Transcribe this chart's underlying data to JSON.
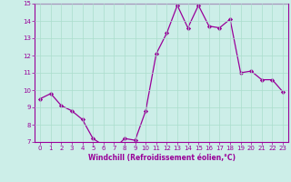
{
  "x": [
    0,
    1,
    2,
    3,
    4,
    5,
    6,
    7,
    8,
    9,
    10,
    11,
    12,
    13,
    14,
    15,
    16,
    17,
    18,
    19,
    20,
    21,
    22,
    23
  ],
  "y": [
    9.5,
    9.8,
    9.1,
    8.8,
    8.3,
    7.2,
    6.8,
    6.6,
    7.2,
    7.1,
    8.8,
    12.1,
    13.3,
    14.9,
    13.6,
    14.9,
    13.7,
    13.6,
    14.1,
    11.0,
    11.1,
    10.6,
    10.6,
    9.9
  ],
  "line_color": "#990099",
  "marker": "D",
  "marker_size": 2.2,
  "bg_color": "#cceee8",
  "grid_color": "#aaddcc",
  "xlabel": "Windchill (Refroidissement éolien,°C)",
  "xlabel_color": "#990099",
  "tick_color": "#990099",
  "spine_color": "#990099",
  "ylim": [
    7,
    15
  ],
  "xlim": [
    -0.5,
    23.5
  ],
  "yticks": [
    7,
    8,
    9,
    10,
    11,
    12,
    13,
    14,
    15
  ],
  "xticks": [
    0,
    1,
    2,
    3,
    4,
    5,
    6,
    7,
    8,
    9,
    10,
    11,
    12,
    13,
    14,
    15,
    16,
    17,
    18,
    19,
    20,
    21,
    22,
    23
  ],
  "tick_fontsize": 5.0,
  "xlabel_fontsize": 5.5,
  "linewidth": 0.9
}
